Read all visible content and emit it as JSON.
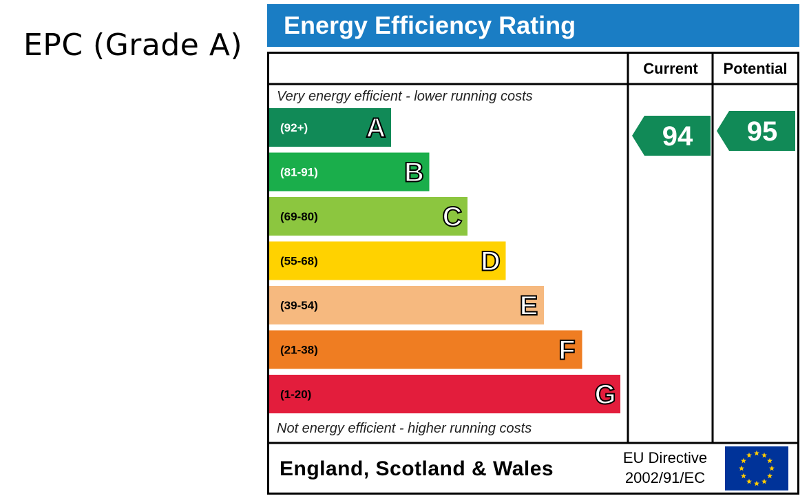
{
  "page_title": "EPC (Grade A)",
  "chart_data": {
    "type": "bar",
    "title": "Energy Efficiency Rating",
    "columns": {
      "current": "Current",
      "potential": "Potential"
    },
    "top_note": "Very energy efficient - lower running costs",
    "bottom_note": "Not energy efficient - higher running costs",
    "bands": [
      {
        "letter": "A",
        "range": "(92+)",
        "color": "#118a57",
        "range_color": "#ffffff"
      },
      {
        "letter": "B",
        "range": "(81-91)",
        "color": "#1aae4b",
        "range_color": "#ffffff"
      },
      {
        "letter": "C",
        "range": "(69-80)",
        "color": "#8cc63f",
        "range_color": "#000000"
      },
      {
        "letter": "D",
        "range": "(55-68)",
        "color": "#ffd200",
        "range_color": "#000000"
      },
      {
        "letter": "E",
        "range": "(39-54)",
        "color": "#f6b97f",
        "range_color": "#000000"
      },
      {
        "letter": "F",
        "range": "(21-38)",
        "color": "#ef7d22",
        "range_color": "#000000"
      },
      {
        "letter": "G",
        "range": "(1-20)",
        "color": "#e31d3c",
        "range_color": "#000000"
      }
    ],
    "current_rating": {
      "value": 94,
      "band": "A",
      "color": "#118a57"
    },
    "potential_rating": {
      "value": 95,
      "band": "A",
      "color": "#118a57"
    },
    "footer_country": "England, Scotland & Wales",
    "footer_directive_line1": "EU Directive",
    "footer_directive_line2": "2002/91/EC",
    "eu_flag_icon": "eu-flag-icon",
    "eu_flag_color": "#003399",
    "eu_star_color": "#ffcc00"
  }
}
